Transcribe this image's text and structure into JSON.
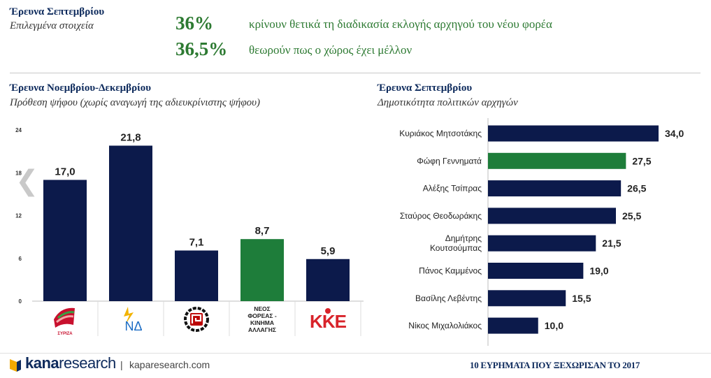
{
  "top": {
    "title": "Έρευνα Σεπτεμβρίου",
    "subtitle": "Επιλεγμένα στοιχεία",
    "stats": [
      {
        "value": "36%",
        "text": "κρίνουν θετικά τη διαδικασία εκλογής αρχηγού του νέου φορέα"
      },
      {
        "value": "36,5%",
        "text": "θεωρούν πως ο χώρος έχει μέλλον"
      }
    ]
  },
  "left_panel": {
    "title": "Έρευνα Νοεμβρίου-Δεκεμβρίου",
    "subtitle": "Πρόθεση ψήφου (χωρίς αναγωγή της αδιευκρίνιστης ψήφου)"
  },
  "right_panel": {
    "title": "Έρευνα Σεπτεμβρίου",
    "subtitle": "Δημοτικότητα πολιτικών αρχηγών"
  },
  "chart_data": [
    {
      "type": "bar",
      "orientation": "vertical",
      "categories": [
        "ΣΥΡΙΖΑ",
        "ΝΔ",
        "Χρυσή Αυγή",
        "ΝΕΟΣ ΦΟΡΕΑΣ - ΚΙΝΗΜΑ ΑΛΛΑΓΗΣ",
        "ΚΚΕ"
      ],
      "category_labels_shown": [
        "",
        "",
        "",
        "ΝΕΟΣ\nΦΟΡΕΑΣ -\nΚΙΝΗΜΑ\nΑΛΛΑΓΗΣ",
        ""
      ],
      "logo_texts": [
        "ΣΥΡΙΖΑ",
        "ΝΔ",
        "",
        "",
        "ΚΚΕ"
      ],
      "values": [
        17.0,
        21.8,
        7.1,
        8.7,
        5.9
      ],
      "value_labels": [
        "17,0",
        "21,8",
        "7,1",
        "8,7",
        "5,9"
      ],
      "bar_colors": [
        "#0c1a4b",
        "#0c1a4b",
        "#0c1a4b",
        "#1e7d3a",
        "#0c1a4b"
      ],
      "yticks": [
        "0",
        "6",
        "12",
        "18",
        "24"
      ],
      "ylim": [
        0,
        24
      ],
      "grid": false
    },
    {
      "type": "bar",
      "orientation": "horizontal",
      "categories": [
        "Κυριάκος Μητσοτάκης",
        "Φώφη Γεννηματά",
        "Αλέξης Τσίπρας",
        "Σταύρος Θεοδωράκης",
        "Δημήτρης\nΚουτσούμπας",
        "Πάνος Καμμένος",
        "Βασίλης Λεβέντης",
        "Νίκος Μιχαλολιάκος"
      ],
      "values": [
        34.0,
        27.5,
        26.5,
        25.5,
        21.5,
        19.0,
        15.5,
        10.0
      ],
      "value_labels": [
        "34,0",
        "27,5",
        "26,5",
        "25,5",
        "21,5",
        "19,0",
        "15,5",
        "10,0"
      ],
      "bar_colors": [
        "#0c1a4b",
        "#1e7d3a",
        "#0c1a4b",
        "#0c1a4b",
        "#0c1a4b",
        "#0c1a4b",
        "#0c1a4b",
        "#0c1a4b"
      ],
      "xlim": [
        0,
        34
      ],
      "grid": false
    }
  ],
  "colors": {
    "navy": "#0c1a4b",
    "green": "#1e7d3a",
    "accent_green_text": "#2d7a32",
    "kke_red": "#d8232a",
    "syriza_red": "#c8102e"
  },
  "footer": {
    "brand_bold": "kana",
    "brand_light": "research",
    "separator": "|",
    "site": "kaparesearch.com",
    "right": "10 ΕΥΡΗΜΑΤΑ ΠΟΥ ΞΕΧΩΡΙΣΑΝ ΤΟ 2017"
  },
  "icons": {
    "prev": "chevron-left-icon"
  }
}
